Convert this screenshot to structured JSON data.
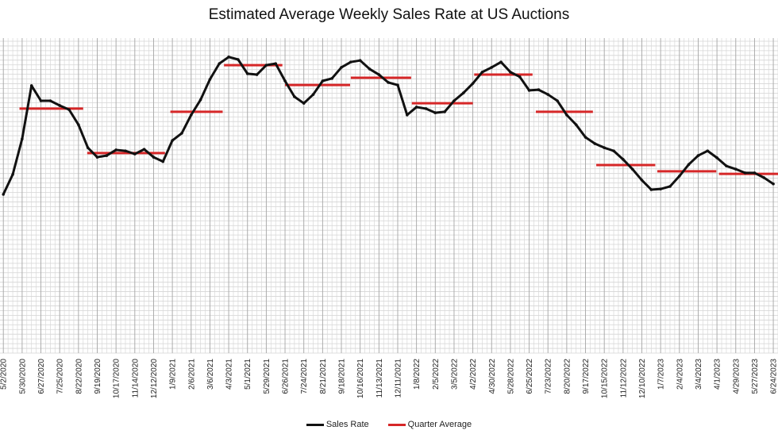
{
  "chart_data": {
    "type": "line",
    "title": "Estimated Average Weekly Sales Rate at US Auctions",
    "xlabel": "",
    "ylabel": "",
    "xlim": [
      "4/27/2020",
      "7/1/2023"
    ],
    "ylim": [
      0,
      100
    ],
    "grid": true,
    "legend_placement": "bottom",
    "x_tick_labels": [
      "5/2/2020",
      "5/30/2020",
      "6/27/2020",
      "7/25/2020",
      "8/22/2020",
      "9/19/2020",
      "10/17/2020",
      "11/14/2020",
      "12/12/2020",
      "1/9/2021",
      "2/6/2021",
      "3/6/2021",
      "4/3/2021",
      "5/1/2021",
      "5/29/2021",
      "6/26/2021",
      "7/24/2021",
      "8/21/2021",
      "9/18/2021",
      "10/16/2021",
      "11/13/2021",
      "12/11/2021",
      "1/8/2022",
      "2/5/2022",
      "3/5/2022",
      "4/2/2022",
      "4/30/2022",
      "5/28/2022",
      "6/25/2022",
      "7/23/2022",
      "8/20/2022",
      "9/17/2022",
      "10/15/2022",
      "11/12/2022",
      "12/10/2022",
      "1/7/2023",
      "2/4/2023",
      "3/4/2023",
      "4/1/2023",
      "4/29/2023",
      "5/27/2023",
      "6/24/2023"
    ],
    "series": [
      {
        "name": "Sales Rate",
        "color": "#111111",
        "x": [
          "5/2/2020",
          "5/16/2020",
          "5/30/2020",
          "6/13/2020",
          "6/27/2020",
          "7/11/2020",
          "7/25/2020",
          "8/8/2020",
          "8/22/2020",
          "9/5/2020",
          "9/19/2020",
          "10/3/2020",
          "10/17/2020",
          "10/31/2020",
          "11/14/2020",
          "11/28/2020",
          "12/12/2020",
          "12/26/2020",
          "1/9/2021",
          "1/23/2021",
          "2/6/2021",
          "2/20/2021",
          "3/6/2021",
          "3/20/2021",
          "4/3/2021",
          "4/17/2021",
          "5/1/2021",
          "5/15/2021",
          "5/29/2021",
          "6/12/2021",
          "6/26/2021",
          "7/10/2021",
          "7/24/2021",
          "8/7/2021",
          "8/21/2021",
          "9/4/2021",
          "9/18/2021",
          "10/2/2021",
          "10/16/2021",
          "10/30/2021",
          "11/13/2021",
          "11/27/2021",
          "12/11/2021",
          "12/25/2021",
          "1/8/2022",
          "1/22/2022",
          "2/5/2022",
          "2/19/2022",
          "3/5/2022",
          "3/19/2022",
          "4/2/2022",
          "4/16/2022",
          "4/30/2022",
          "5/14/2022",
          "5/28/2022",
          "6/11/2022",
          "6/25/2022",
          "7/9/2022",
          "7/23/2022",
          "8/6/2022",
          "8/20/2022",
          "9/3/2022",
          "9/17/2022",
          "10/1/2022",
          "10/15/2022",
          "10/29/2022",
          "11/12/2022",
          "11/26/2022",
          "12/10/2022",
          "12/24/2022",
          "1/7/2023",
          "1/21/2023",
          "2/4/2023",
          "2/18/2023",
          "3/4/2023",
          "3/18/2023",
          "4/1/2023",
          "4/15/2023",
          "4/29/2023",
          "5/13/2023",
          "5/27/2023",
          "6/10/2023",
          "6/24/2023"
        ],
        "values": [
          50.4,
          56.7,
          68.0,
          84.9,
          80.1,
          80.1,
          78.6,
          77.3,
          72.5,
          65.2,
          62.2,
          62.7,
          64.5,
          64.2,
          63.2,
          64.7,
          62.2,
          60.8,
          67.5,
          69.8,
          75.6,
          80.4,
          86.9,
          91.9,
          94.0,
          93.2,
          88.7,
          88.4,
          91.4,
          91.9,
          86.4,
          81.4,
          79.3,
          82.1,
          86.4,
          87.2,
          90.7,
          92.4,
          92.9,
          90.2,
          88.4,
          85.9,
          85.1,
          75.6,
          78.1,
          77.6,
          76.3,
          76.6,
          80.1,
          82.6,
          85.6,
          89.2,
          90.7,
          92.4,
          89.2,
          87.7,
          83.4,
          83.6,
          82.1,
          80.1,
          75.6,
          72.5,
          68.5,
          66.5,
          65.2,
          64.2,
          61.5,
          58.4,
          54.9,
          51.9,
          52.1,
          52.9,
          56.2,
          59.9,
          62.7,
          64.2,
          62.0,
          59.4,
          58.4,
          57.2,
          57.2,
          55.7,
          53.7
        ]
      },
      {
        "name": "Quarter Average",
        "color": "#d62728",
        "segments": [
          {
            "start": "5/26/2020",
            "end": "8/29/2020",
            "value": 77.6
          },
          {
            "start": "9/4/2020",
            "end": "12/29/2020",
            "value": 63.5
          },
          {
            "start": "1/6/2021",
            "end": "3/25/2021",
            "value": 76.6
          },
          {
            "start": "3/27/2021",
            "end": "6/22/2021",
            "value": 91.4
          },
          {
            "start": "6/26/2021",
            "end": "10/1/2021",
            "value": 85.1
          },
          {
            "start": "10/2/2021",
            "end": "12/31/2021",
            "value": 87.4
          },
          {
            "start": "1/1/2022",
            "end": "4/2/2022",
            "value": 79.3
          },
          {
            "start": "4/4/2022",
            "end": "6/30/2022",
            "value": 88.4
          },
          {
            "start": "7/5/2022",
            "end": "9/28/2022",
            "value": 76.6
          },
          {
            "start": "10/3/2022",
            "end": "12/30/2022",
            "value": 59.7
          },
          {
            "start": "1/2/2023",
            "end": "3/31/2023",
            "value": 57.7
          },
          {
            "start": "4/4/2023",
            "end": "7/1/2023",
            "value": 56.9
          }
        ]
      }
    ]
  }
}
